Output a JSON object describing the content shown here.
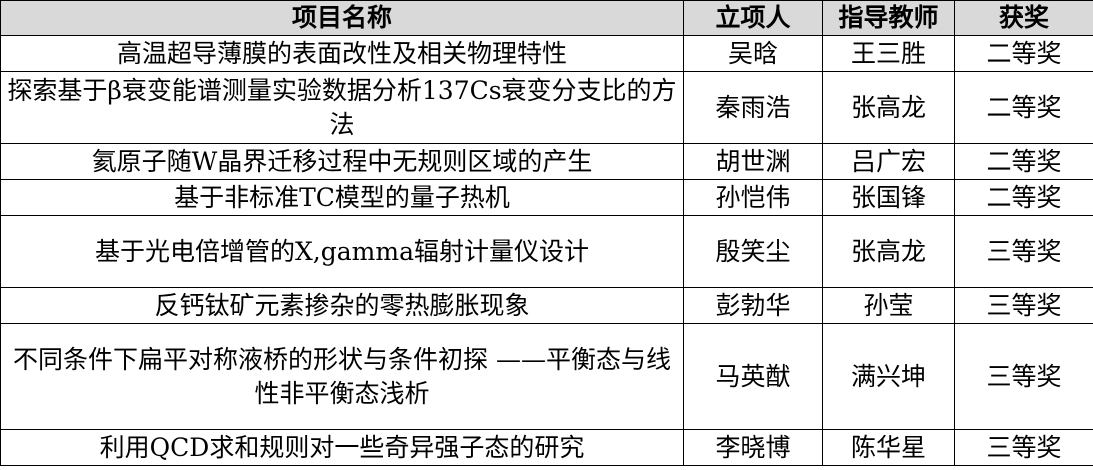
{
  "table": {
    "columns": [
      "项目名称",
      "立项人",
      "指导教师",
      "获奖"
    ],
    "rows": [
      [
        "高温超导薄膜的表面改性及相关物理特性",
        "吴晗",
        "王三胜",
        "二等奖"
      ],
      [
        "探索基于β衰变能谱测量实验数据分析137Cs衰变分支比的方法",
        "秦雨浩",
        "张高龙",
        "二等奖"
      ],
      [
        "氦原子随W晶界迁移过程中无规则区域的产生",
        "胡世渊",
        "吕广宏",
        "二等奖"
      ],
      [
        "基于非标准TC模型的量子热机",
        "孙恺伟",
        "张国锋",
        "二等奖"
      ],
      [
        "基于光电倍增管的X,gamma辐射计量仪设计",
        "殷笑尘",
        "张高龙",
        "三等奖"
      ],
      [
        "反钙钛矿元素掺杂的零热膨胀现象",
        "彭勃华",
        "孙莹",
        "三等奖"
      ],
      [
        "不同条件下扁平对称液桥的形状与条件初探 ——平衡态与线性非平衡态浅析",
        "马英猷",
        "满兴坤",
        "三等奖"
      ],
      [
        "利用QCD求和规则对一些奇异强子态的研究",
        "李晓博",
        "陈华星",
        "三等奖"
      ]
    ]
  }
}
